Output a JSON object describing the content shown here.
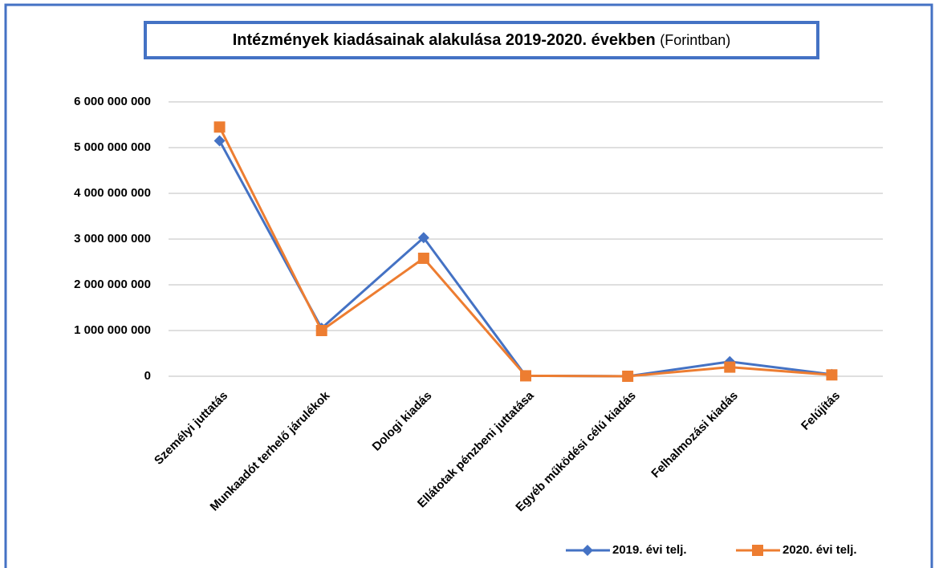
{
  "chart_data": {
    "type": "line",
    "title": "Intézmények kiadásainak alakulása 2019-2020. években",
    "title_note": "(Forintban)",
    "categories": [
      "Személyi juttatás",
      "Munkaadót terhelő járulékok",
      "Dologi kiadás",
      "Ellátotak pénzbeni juttatása",
      "Egyéb működési célú kiadás",
      "Felhalmozási kiadás",
      "Felújítás"
    ],
    "series": [
      {
        "name": "2019. évi telj.",
        "color": "#4472c4",
        "marker": "diamond",
        "values": [
          5150000000,
          1050000000,
          3030000000,
          10000000,
          0,
          320000000,
          40000000
        ]
      },
      {
        "name": "2020. évi telj.",
        "color": "#ed7d31",
        "marker": "square",
        "values": [
          5450000000,
          1000000000,
          2580000000,
          10000000,
          0,
          200000000,
          30000000
        ]
      }
    ],
    "ylim": [
      0,
      6000000000
    ],
    "yticks": [
      0,
      {
        "value": 1000000000,
        "label": "1 000 000 000"
      },
      {
        "value": 2000000000,
        "label": "2 000 000 000"
      },
      {
        "value": 3000000000,
        "label": "3 000 000 000"
      },
      {
        "value": 4000000000,
        "label": "4 000 000 000"
      },
      {
        "value": 5000000000,
        "label": "5 000 000 000"
      },
      {
        "value": 6000000000,
        "label": "6 000 000 000"
      }
    ],
    "grid": true,
    "legend": "bottom-right"
  }
}
